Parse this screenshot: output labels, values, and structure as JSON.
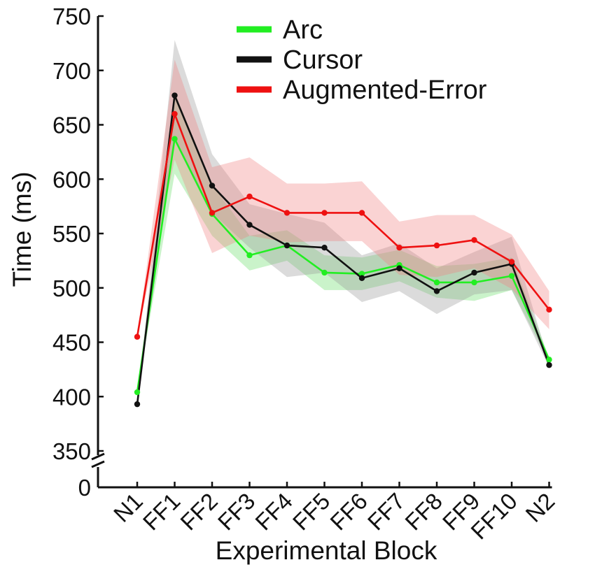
{
  "chart_data": {
    "type": "line",
    "xlabel": "Experimental Block",
    "ylabel": "Time (ms)",
    "categories": [
      "N1",
      "FF1",
      "FF2",
      "FF3",
      "FF4",
      "FF5",
      "FF6",
      "FF7",
      "FF8",
      "FF9",
      "FF10",
      "N2"
    ],
    "ylim": [
      350,
      750
    ],
    "yticks": [
      350,
      400,
      450,
      500,
      550,
      600,
      650,
      700,
      750
    ],
    "axis_break": {
      "lower_tick": 0,
      "label": "0"
    },
    "grid": false,
    "legend_position": "top-right",
    "series": [
      {
        "name": "Arc",
        "color": "#22ee22",
        "band_color": "#66dd66",
        "values": [
          404,
          637,
          568,
          530,
          539,
          514,
          513,
          521,
          505,
          505,
          511,
          434
        ],
        "upper": [
          404,
          680,
          595,
          548,
          553,
          530,
          528,
          535,
          520,
          522,
          528,
          436
        ],
        "lower": [
          404,
          605,
          548,
          516,
          525,
          498,
          498,
          506,
          491,
          488,
          498,
          432
        ]
      },
      {
        "name": "Cursor",
        "color": "#111111",
        "band_color": "#999999",
        "values": [
          393,
          677,
          594,
          558,
          539,
          537,
          509,
          518,
          497,
          514,
          522,
          429
        ],
        "upper": [
          393,
          728,
          623,
          577,
          568,
          560,
          530,
          541,
          518,
          533,
          547,
          431
        ],
        "lower": [
          393,
          638,
          569,
          537,
          510,
          514,
          487,
          497,
          476,
          494,
          498,
          427
        ]
      },
      {
        "name": "Augmented-Error",
        "color": "#ee1111",
        "band_color": "#f08080",
        "values": [
          455,
          660,
          569,
          584,
          569,
          569,
          569,
          537,
          539,
          544,
          524,
          480
        ],
        "upper": [
          455,
          710,
          611,
          620,
          596,
          596,
          598,
          561,
          567,
          567,
          549,
          497
        ],
        "lower": [
          455,
          618,
          532,
          548,
          542,
          543,
          543,
          512,
          510,
          518,
          499,
          462
        ]
      }
    ]
  }
}
